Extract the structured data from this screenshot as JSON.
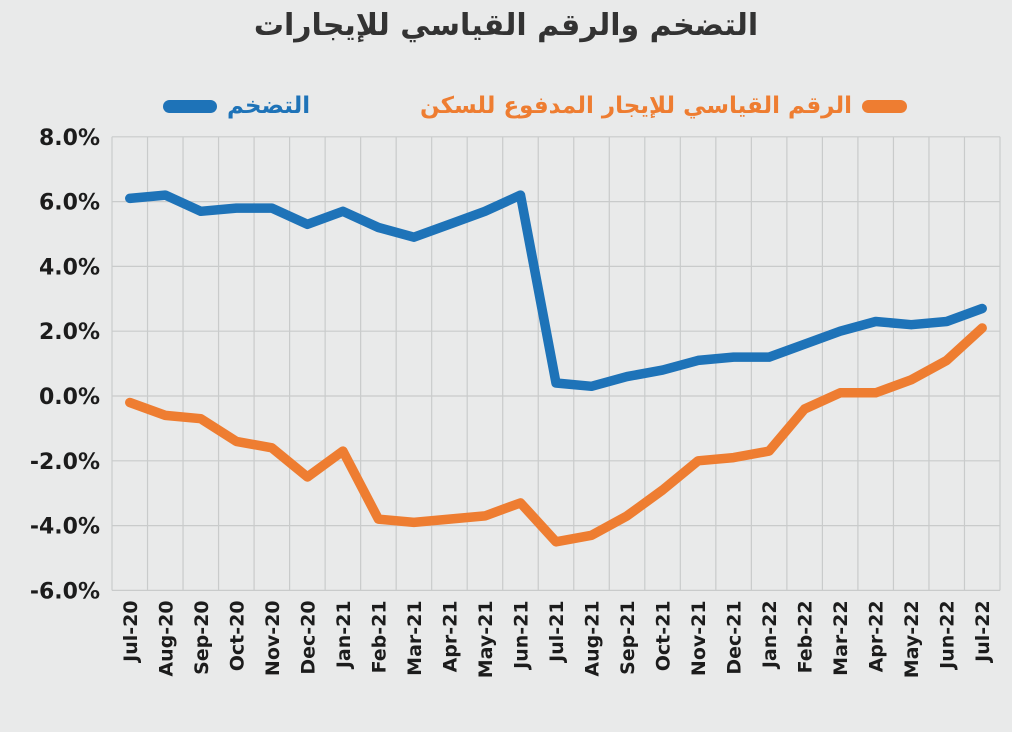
{
  "title": "التضخم والرقم القياسي للإيجارات",
  "legend": {
    "inflation_label": "التضخم",
    "rent_label": "الرقم القياسي للإيجار المدفوع للسكن"
  },
  "colors": {
    "inflation": "#1e73b8",
    "rent": "#ee7d31",
    "grid": "#c9cbcb",
    "text": "#1c1c1c",
    "background": "#e9eaea"
  },
  "chart_data": {
    "type": "line",
    "title": "التضخم والرقم القياسي للإيجارات",
    "categories": [
      "Jul-20",
      "Aug-20",
      "Sep-20",
      "Oct-20",
      "Nov-20",
      "Dec-20",
      "Jan-21",
      "Feb-21",
      "Mar-21",
      "Apr-21",
      "May-21",
      "Jun-21",
      "Jul-21",
      "Aug-21",
      "Sep-21",
      "Oct-21",
      "Nov-21",
      "Dec-21",
      "Jan-22",
      "Feb-22",
      "Mar-22",
      "Apr-22",
      "May-22",
      "Jun-22",
      "Jul-22"
    ],
    "series": [
      {
        "key": "inflation",
        "name": "التضخم",
        "color": "#1e73b8",
        "values": [
          6.1,
          6.2,
          5.7,
          5.8,
          5.8,
          5.3,
          5.7,
          5.2,
          4.9,
          5.3,
          5.7,
          6.2,
          0.4,
          0.3,
          0.6,
          0.8,
          1.1,
          1.2,
          1.2,
          1.6,
          2.0,
          2.3,
          2.2,
          2.3,
          2.7
        ]
      },
      {
        "key": "rent",
        "name": "الرقم القياسي للإيجار المدفوع للسكن",
        "color": "#ee7d31",
        "values": [
          -0.2,
          -0.6,
          -0.7,
          -1.4,
          -1.6,
          -2.5,
          -1.7,
          -3.8,
          -3.9,
          -3.8,
          -3.7,
          -3.3,
          -4.5,
          -4.3,
          -3.7,
          -2.9,
          -2.0,
          -1.9,
          -1.7,
          -0.4,
          0.1,
          0.1,
          0.5,
          1.1,
          2.1
        ]
      }
    ],
    "ylim": [
      -6,
      8
    ],
    "ytick_values": [
      8,
      6,
      4,
      2,
      0,
      -2,
      -4,
      -6
    ],
    "ytick_labels": [
      "8.0%",
      "6.0%",
      "4.0%",
      "2.0%",
      "0.0%",
      "-2.0%",
      "-4.0%",
      "-6.0%"
    ],
    "grid": true,
    "legend_position": "top"
  }
}
